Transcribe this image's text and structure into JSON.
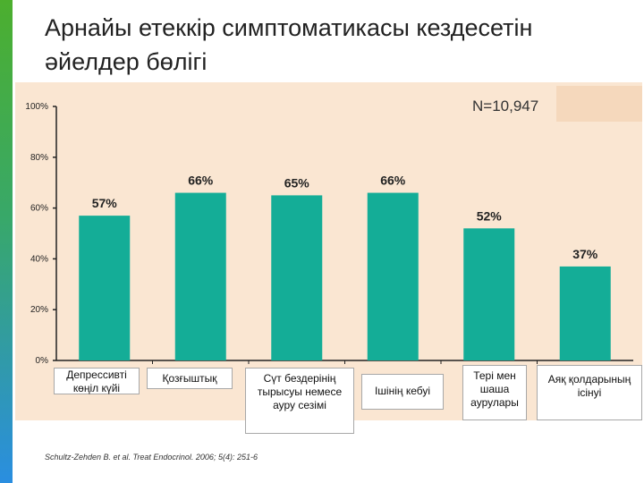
{
  "title": "Арнайы етеккір симптоматикасы кездесетін әйелдер бөлігі",
  "sample_size": "N=10,947",
  "citation": "Schultz-Zehden B. et al. Treat Endocrinol. 2006; 5(4): 251-6",
  "colors": {
    "bar": "#14ad97",
    "panel": "#fae6d2",
    "accent": "#4caf2e"
  },
  "chart_data": {
    "type": "bar",
    "title": "Арнайы етеккір симптоматикасы кездесетін әйелдер бөлігі",
    "xlabel": "",
    "ylabel": "",
    "ylim": [
      0,
      100
    ],
    "yticks": [
      0,
      20,
      40,
      60,
      80,
      100
    ],
    "ytick_labels": [
      "0%",
      "20%",
      "40%",
      "60%",
      "80%",
      "100%"
    ],
    "categories": [
      "Депрессивті көңіл күйі",
      "Қозғыштық",
      "Сүт бездерінің тырысуы немесе ауру сезімі",
      "Ішінің кебуі",
      "Тері мен шаша аурулары",
      "Аяқ қолдарының ісінуі"
    ],
    "values": [
      57,
      66,
      65,
      66,
      52,
      37
    ],
    "data_labels": [
      "57%",
      "66%",
      "65%",
      "66%",
      "52%",
      "37%"
    ]
  }
}
